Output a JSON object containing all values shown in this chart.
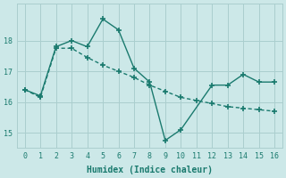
{
  "line1_x": [
    0,
    1,
    2,
    3,
    4,
    5,
    6,
    7,
    8,
    9,
    10,
    12,
    13,
    14,
    15,
    16
  ],
  "line1_y": [
    16.4,
    16.2,
    17.8,
    18.0,
    17.8,
    18.7,
    18.35,
    17.1,
    16.65,
    14.75,
    15.1,
    16.55,
    16.55,
    16.9,
    16.65,
    16.65
  ],
  "line2_x": [
    0,
    1,
    2,
    3,
    4,
    5,
    6,
    7,
    8,
    9,
    10,
    11,
    12,
    13,
    14,
    15,
    16
  ],
  "line2_y": [
    16.4,
    16.15,
    17.75,
    17.75,
    17.45,
    17.2,
    17.0,
    16.8,
    16.55,
    16.35,
    16.15,
    16.05,
    15.95,
    15.85,
    15.8,
    15.75,
    15.7
  ],
  "line_color": "#1a7a6e",
  "bg_color": "#cce8e8",
  "grid_color": "#aacece",
  "xlabel": "Humidex (Indice chaleur)",
  "ylim": [
    14.5,
    19.2
  ],
  "xlim": [
    -0.5,
    16.5
  ],
  "yticks": [
    15,
    16,
    17,
    18
  ],
  "xticks": [
    0,
    1,
    2,
    3,
    4,
    5,
    6,
    7,
    8,
    9,
    10,
    11,
    12,
    13,
    14,
    15,
    16
  ],
  "marker": "+",
  "markersize": 4,
  "linewidth": 1.0,
  "tick_fontsize": 6,
  "xlabel_fontsize": 7
}
